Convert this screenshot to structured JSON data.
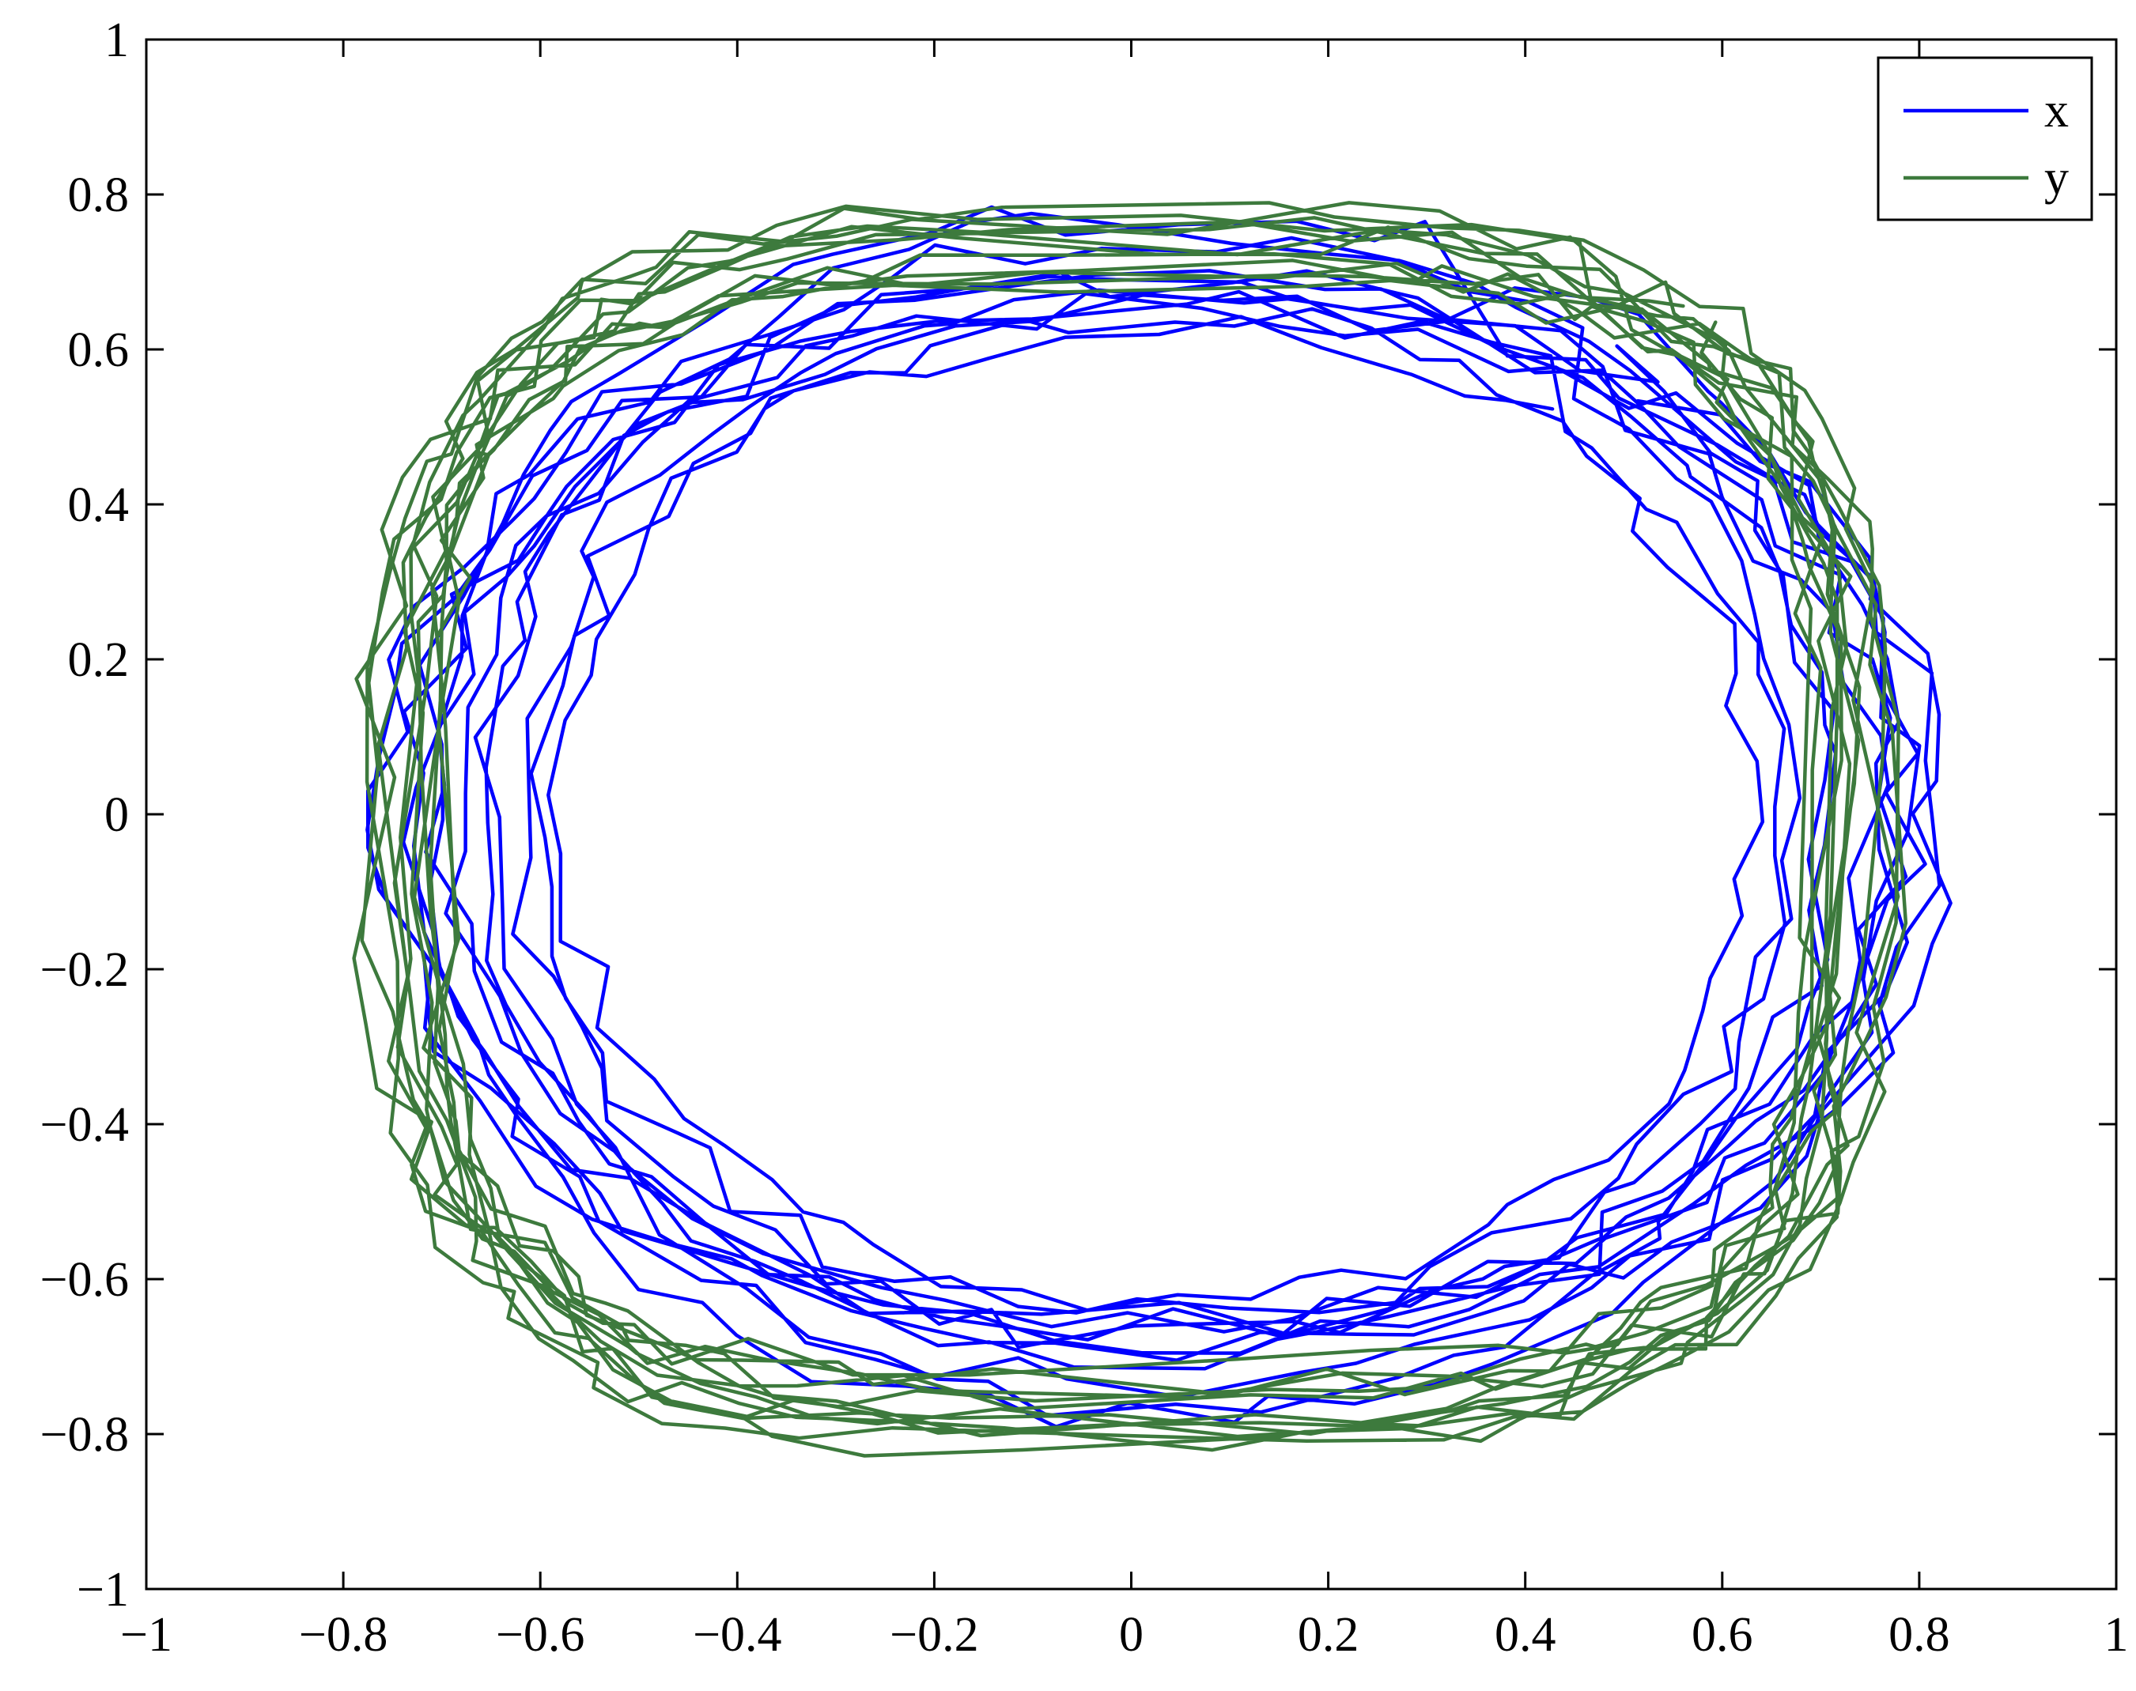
{
  "chart_data": {
    "type": "line",
    "title": "",
    "xlabel": "",
    "ylabel": "",
    "xlim": [
      -1,
      1
    ],
    "ylim": [
      -1,
      1
    ],
    "xticks": [
      -1,
      -0.8,
      -0.6,
      -0.4,
      -0.2,
      0,
      0.2,
      0.4,
      0.6,
      0.8,
      1
    ],
    "yticks": [
      -1,
      -0.8,
      -0.6,
      -0.4,
      -0.2,
      0,
      0.2,
      0.4,
      0.6,
      0.8,
      1
    ],
    "xtick_labels": [
      "−1",
      "−0.8",
      "−0.6",
      "−0.4",
      "−0.2",
      "0",
      "0.2",
      "0.4",
      "0.6",
      "0.8",
      "1"
    ],
    "ytick_labels": [
      "−1",
      "−0.8",
      "−0.6",
      "−0.4",
      "−0.2",
      "0",
      "0.2",
      "0.4",
      "0.6",
      "0.8",
      "1"
    ],
    "grid": false,
    "legend_position": "top-right",
    "series": [
      {
        "name": "x",
        "color": "#0000ff",
        "shape": "noisy closed orbit, roughly elliptical",
        "center": [
          0.03,
          0.0
        ],
        "radius_x_range": [
          0.6,
          0.8
        ],
        "radius_y_range": [
          0.62,
          0.82
        ],
        "loops": 12,
        "start": [
          0.42,
          0.42
        ]
      },
      {
        "name": "y",
        "color": "#3d7a3d",
        "shape": "noisy closed orbit, rounded square",
        "center": [
          0.0,
          -0.02
        ],
        "radius_x_range": [
          0.68,
          0.78
        ],
        "radius_y_range": [
          0.7,
          0.8
        ],
        "loops": 12
      }
    ]
  }
}
